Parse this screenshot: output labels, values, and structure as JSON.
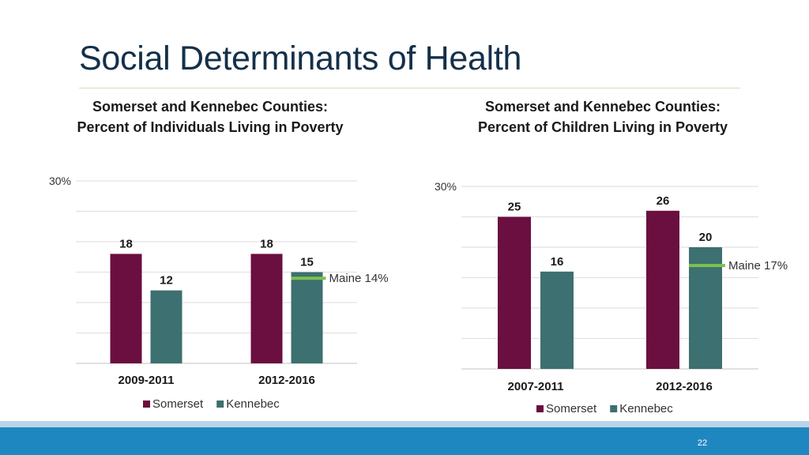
{
  "slide": {
    "title": "Social Determinants of Health",
    "page_number": "22"
  },
  "colors": {
    "somerset": "#6a0f3f",
    "kennebec": "#3d7070",
    "maine_marker": "#7cc24c",
    "gridline": "#e2e2e2",
    "footer": "#1f87c0"
  },
  "chart_data": [
    {
      "type": "bar",
      "title_lines": [
        "Somerset and Kennebec Counties:",
        "Percent of Individuals Living in Poverty"
      ],
      "categories": [
        "2009-2011",
        "2012-2016"
      ],
      "series": [
        {
          "name": "Somerset",
          "values": [
            18,
            18
          ]
        },
        {
          "name": "Kennebec",
          "values": [
            12,
            15
          ]
        }
      ],
      "ylim": [
        0,
        30
      ],
      "y_tick_label": "30%",
      "grid": true,
      "legend": "bottom",
      "reference": {
        "label": "Maine 14%",
        "value": 14,
        "category_index": 1
      }
    },
    {
      "type": "bar",
      "title_lines": [
        "Somerset and Kennebec Counties:",
        "Percent of Children Living in Poverty"
      ],
      "categories": [
        "2007-2011",
        "2012-2016"
      ],
      "series": [
        {
          "name": "Somerset",
          "values": [
            25,
            26
          ]
        },
        {
          "name": "Kennebec",
          "values": [
            16,
            20
          ]
        }
      ],
      "ylim": [
        0,
        30
      ],
      "y_tick_label": "30%",
      "grid": true,
      "legend": "bottom",
      "reference": {
        "label": "Maine 17%",
        "value": 17,
        "category_index": 1
      }
    }
  ]
}
